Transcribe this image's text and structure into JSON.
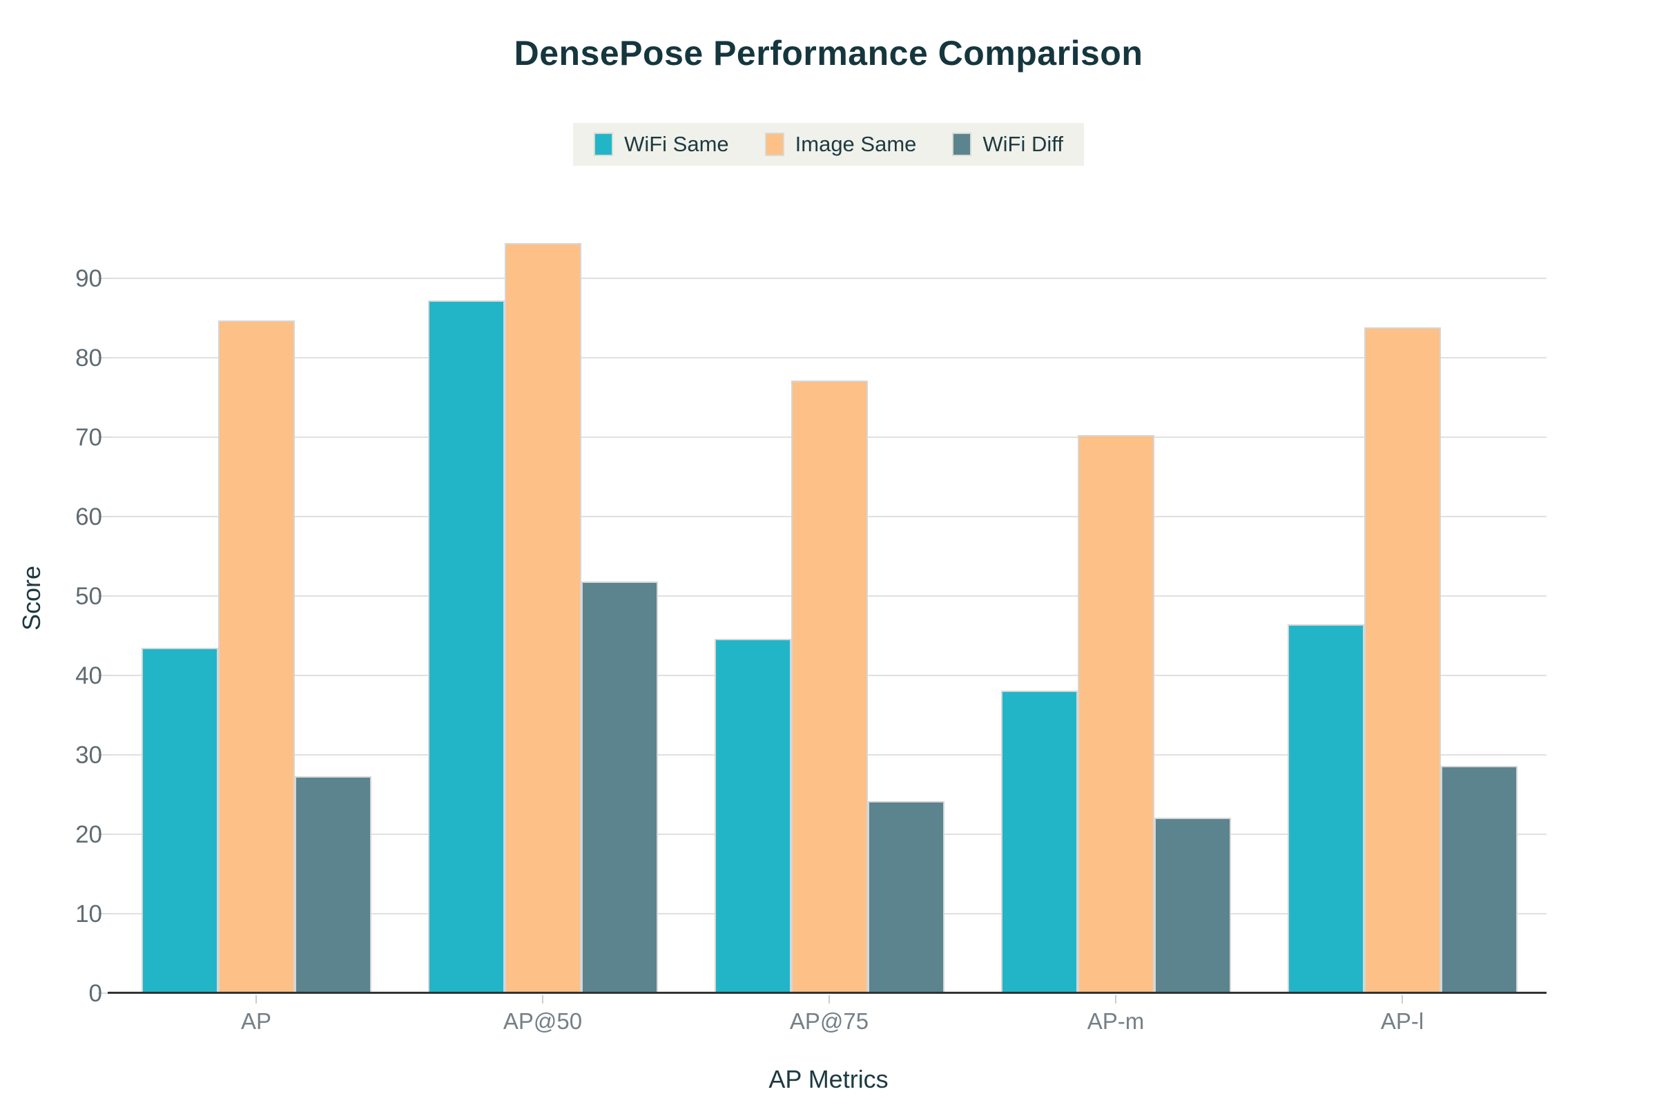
{
  "chart_data": {
    "type": "bar",
    "title": "DensePose Performance Comparison",
    "xlabel": "AP Metrics",
    "ylabel": "Score",
    "categories": [
      "AP",
      "AP@50",
      "AP@75",
      "AP-m",
      "AP-l"
    ],
    "series": [
      {
        "name": "WiFi Same",
        "color": "#22b5c8",
        "values": [
          43.5,
          87.2,
          44.6,
          38.1,
          46.4
        ]
      },
      {
        "name": "Image Same",
        "color": "#fdc086",
        "values": [
          84.7,
          94.4,
          77.1,
          70.3,
          83.8
        ]
      },
      {
        "name": "WiFi Diff",
        "color": "#5b848e",
        "values": [
          27.3,
          51.8,
          24.2,
          22.1,
          28.6
        ]
      }
    ],
    "ylim": [
      0,
      100
    ],
    "yticks": [
      0,
      10,
      20,
      30,
      40,
      50,
      60,
      70,
      80,
      90
    ],
    "grid": true,
    "legend_position": "top-center",
    "legend_background": "#f0f1ea"
  }
}
